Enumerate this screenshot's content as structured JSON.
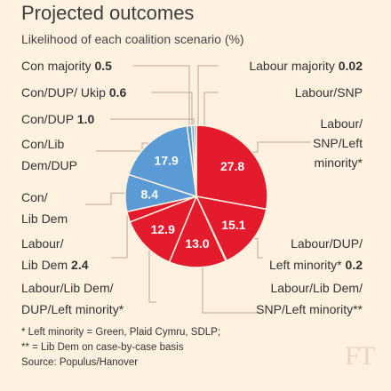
{
  "header": {
    "title": "Projected outcomes",
    "subtitle": "Likelihood of each coalition scenario (%)"
  },
  "chart_data": {
    "type": "pie",
    "title": "Projected outcomes",
    "subtitle": "Likelihood of each coalition scenario (%)",
    "slices": [
      {
        "label": "Labour majority",
        "value": 0.02,
        "value_text": "0.02",
        "color": "#e41b2c"
      },
      {
        "label": "Labour/SNP",
        "value": 0,
        "value_text": "",
        "color": "#e41b2c"
      },
      {
        "label": "Labour/SNP/Left minority*",
        "value": 27.8,
        "value_text": "27.8",
        "color": "#e41b2c"
      },
      {
        "label": "Labour/DUP/Left minority*",
        "value": 15.1,
        "value_text": "15.1",
        "color": "#e41b2c"
      },
      {
        "label": "Labour/DUP/Left minority* 0.2",
        "value": 0.2,
        "value_text": "0.2",
        "color": "#e41b2c"
      },
      {
        "label": "Labour/Lib Dem/SNP/Left minority**",
        "value": 13.0,
        "value_text": "13.0",
        "color": "#e41b2c"
      },
      {
        "label": "Labour/Lib Dem/DUP/Left minority*",
        "value": 12.9,
        "value_text": "12.9",
        "color": "#e41b2c"
      },
      {
        "label": "Labour/Lib Dem",
        "value": 2.4,
        "value_text": "2.4",
        "color": "#e41b2c"
      },
      {
        "label": "Con/Lib Dem",
        "value": 8.4,
        "value_text": "8.4",
        "color": "#5b9bd5"
      },
      {
        "label": "Con/Lib Dem/DUP",
        "value": 17.9,
        "value_text": "17.9",
        "color": "#5b9bd5"
      },
      {
        "label": "Con/DUP",
        "value": 1.0,
        "value_text": "1.0",
        "color": "#5b9bd5"
      },
      {
        "label": "Con/DUP/ Ukip",
        "value": 0.6,
        "value_text": "0.6",
        "color": "#5b9bd5"
      },
      {
        "label": "Con majority",
        "value": 0.5,
        "value_text": "0.5",
        "color": "#5b9bd5"
      }
    ]
  },
  "labels": {
    "con_majority": {
      "name": "Con majority",
      "value": "0.5"
    },
    "con_dup_ukip": {
      "name": "Con/DUP/ Ukip",
      "value": "0.6"
    },
    "con_dup": {
      "name": "Con/DUP",
      "value": "1.0"
    },
    "con_libdem_dup": {
      "line1": "Con/Lib",
      "line2": "Dem/DUP"
    },
    "con_libdem": {
      "line1": "Con/",
      "line2": "Lib Dem"
    },
    "labour_libdem": {
      "line1": "Labour/",
      "line2": "Lib Dem",
      "value": "2.4"
    },
    "labour_libdem_dup_left": {
      "line1": "Labour/Lib Dem/",
      "line2": "DUP/Left minority*"
    },
    "labour_majority": {
      "name": "Labour majority",
      "value": "0.02"
    },
    "labour_snp": {
      "name": "Labour/SNP"
    },
    "labour_snp_left": {
      "line1": "Labour/",
      "line2": "SNP/Left",
      "line3": "minority*"
    },
    "labour_dup_left": {
      "line1": "Labour/DUP/",
      "line2": "Left minority*",
      "value": "0.2"
    },
    "labour_libdem_snp_left": {
      "line1": "Labour/Lib Dem/",
      "line2": "SNP/Left minority**"
    }
  },
  "notes": {
    "note1": "* Left minority = Green, Plaid Cymru, SDLP;",
    "note2": "** = Lib Dem on case-by-case basis",
    "source": "Source: Populus/Hanover"
  },
  "logo": "FT",
  "colors": {
    "background": "#fff1e0",
    "labour": "#e41b2c",
    "conservative": "#5b9bd5",
    "leader": "#b5a89a"
  }
}
